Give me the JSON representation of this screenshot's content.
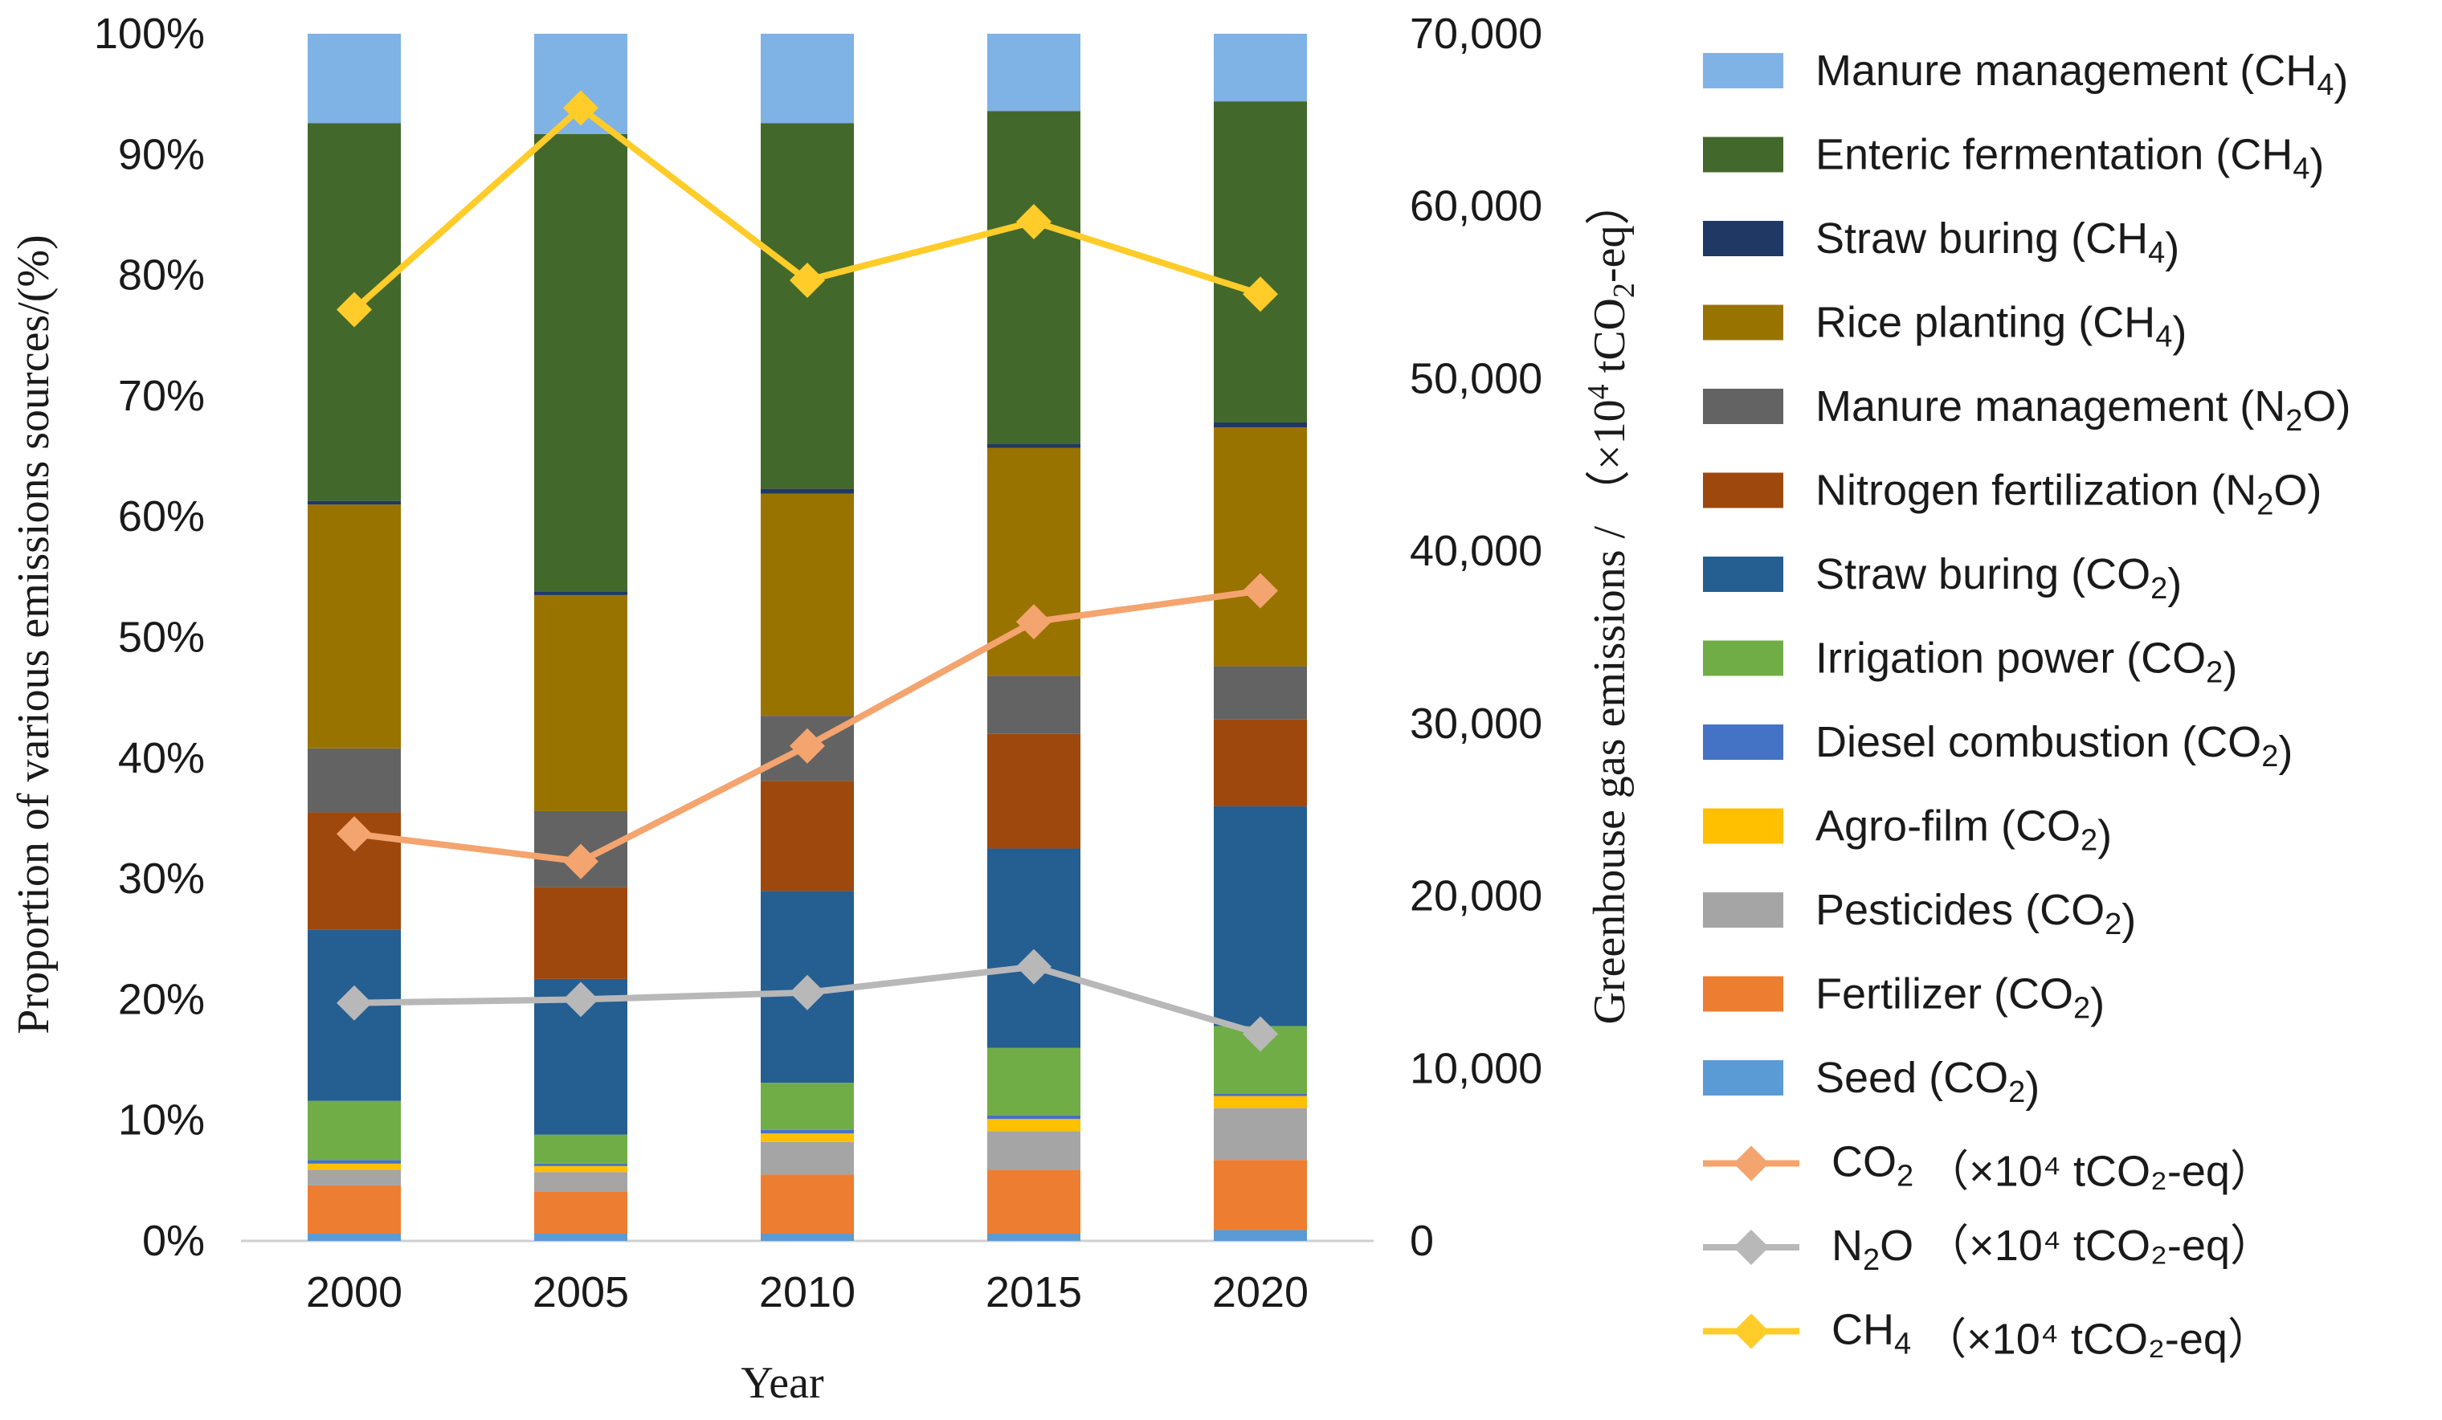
{
  "chart_data": {
    "type": "bar",
    "subtype": "stacked-percent-bar-with-lines",
    "categories": [
      "2000",
      "2005",
      "2010",
      "2015",
      "2020"
    ],
    "xlabel": "Year",
    "ylabel_left": "Proportion of various emissions sources/(%)",
    "ylabel_right": {
      "prefix": "Greenhouse gas emissions / （×10",
      "sup": "4",
      "mid": " tCO",
      "sub": "2",
      "suffix": "-eq）"
    },
    "ylim_left": [
      0,
      100
    ],
    "ylim_right": [
      0,
      70000
    ],
    "left_ticks": [
      "0%",
      "10%",
      "20%",
      "30%",
      "40%",
      "50%",
      "60%",
      "70%",
      "80%",
      "90%",
      "100%"
    ],
    "right_ticks": [
      "0",
      "10,000",
      "20,000",
      "30,000",
      "40,000",
      "50,000",
      "60,000",
      "70,000"
    ],
    "stack_series": [
      {
        "key": "seed",
        "name": "Seed",
        "gas": "CO2",
        "color": "#5b9bd5",
        "values": [
          0.6,
          0.6,
          0.6,
          0.6,
          0.9
        ]
      },
      {
        "key": "fertilizer",
        "name": "Fertilizer",
        "gas": "CO2",
        "color": "#ed7d31",
        "values": [
          4.0,
          3.5,
          4.9,
          5.3,
          5.8
        ]
      },
      {
        "key": "pesticides",
        "name": "Pesticides",
        "gas": "CO2",
        "color": "#a5a5a5",
        "values": [
          1.3,
          1.6,
          2.7,
          3.2,
          4.3
        ]
      },
      {
        "key": "agrofilm",
        "name": "Agro-film",
        "gas": "CO2",
        "color": "#ffc000",
        "values": [
          0.5,
          0.5,
          0.7,
          1.0,
          1.0
        ]
      },
      {
        "key": "diesel",
        "name": "Diesel combustion",
        "gas": "CO2",
        "color": "#4472c4",
        "values": [
          0.3,
          0.2,
          0.3,
          0.3,
          0.2
        ]
      },
      {
        "key": "irrigation",
        "name": "Irrigation power",
        "gas": "CO2",
        "color": "#70ad47",
        "values": [
          4.9,
          2.4,
          3.9,
          5.6,
          5.6
        ]
      },
      {
        "key": "strawco2",
        "name": "Straw buring",
        "gas": "CO2",
        "color": "#255e91",
        "values": [
          14.2,
          12.9,
          15.9,
          16.5,
          18.2
        ]
      },
      {
        "key": "nitrogen",
        "name": "Nitrogen fertilization",
        "gas": "N2O",
        "color": "#9e480e",
        "values": [
          9.7,
          7.6,
          9.1,
          9.5,
          7.2
        ]
      },
      {
        "key": "manuren2o",
        "name": "Manure management",
        "gas": "N2O",
        "color": "#636363",
        "values": [
          5.3,
          6.3,
          5.4,
          4.8,
          4.4
        ]
      },
      {
        "key": "rice",
        "name": "Rice planting",
        "gas": "CH4",
        "color": "#997300",
        "values": [
          20.2,
          17.9,
          18.4,
          18.9,
          19.8
        ]
      },
      {
        "key": "strawch4",
        "name": "Straw buring",
        "gas": "CH4",
        "color": "#203864",
        "values": [
          0.3,
          0.3,
          0.4,
          0.3,
          0.4
        ]
      },
      {
        "key": "enteric",
        "name": "Enteric fermentation",
        "gas": "CH4",
        "color": "#43682b",
        "values": [
          31.3,
          37.9,
          30.3,
          27.6,
          26.6
        ]
      },
      {
        "key": "manurech4",
        "name": "Manure management",
        "gas": "CH4",
        "color": "#7fb2e5",
        "values": [
          7.4,
          8.3,
          7.4,
          6.4,
          5.6
        ]
      }
    ],
    "line_series": [
      {
        "key": "co2line",
        "gas": "CO2",
        "unit": "（×10⁴ tCO₂-eq）",
        "color": "#f4a46e",
        "values": [
          23600,
          22000,
          28700,
          35900,
          37700
        ]
      },
      {
        "key": "n2oline",
        "gas": "N2O",
        "unit": "（×10⁴ tCO₂-eq）",
        "color": "#b8b8b8",
        "values": [
          13800,
          14000,
          14400,
          15900,
          12000
        ]
      },
      {
        "key": "ch4line",
        "gas": "CH4",
        "unit": "（×10⁴ tCO₂-eq）",
        "color": "#ffcc29",
        "values": [
          54000,
          65700,
          55700,
          59100,
          54900
        ]
      }
    ],
    "legend_order": [
      "manurech4",
      "enteric",
      "strawch4",
      "rice",
      "manuren2o",
      "nitrogen",
      "strawco2",
      "irrigation",
      "diesel",
      "agrofilm",
      "pesticides",
      "fertilizer",
      "seed",
      "co2line",
      "n2oline",
      "ch4line"
    ],
    "legend_position": "right"
  }
}
